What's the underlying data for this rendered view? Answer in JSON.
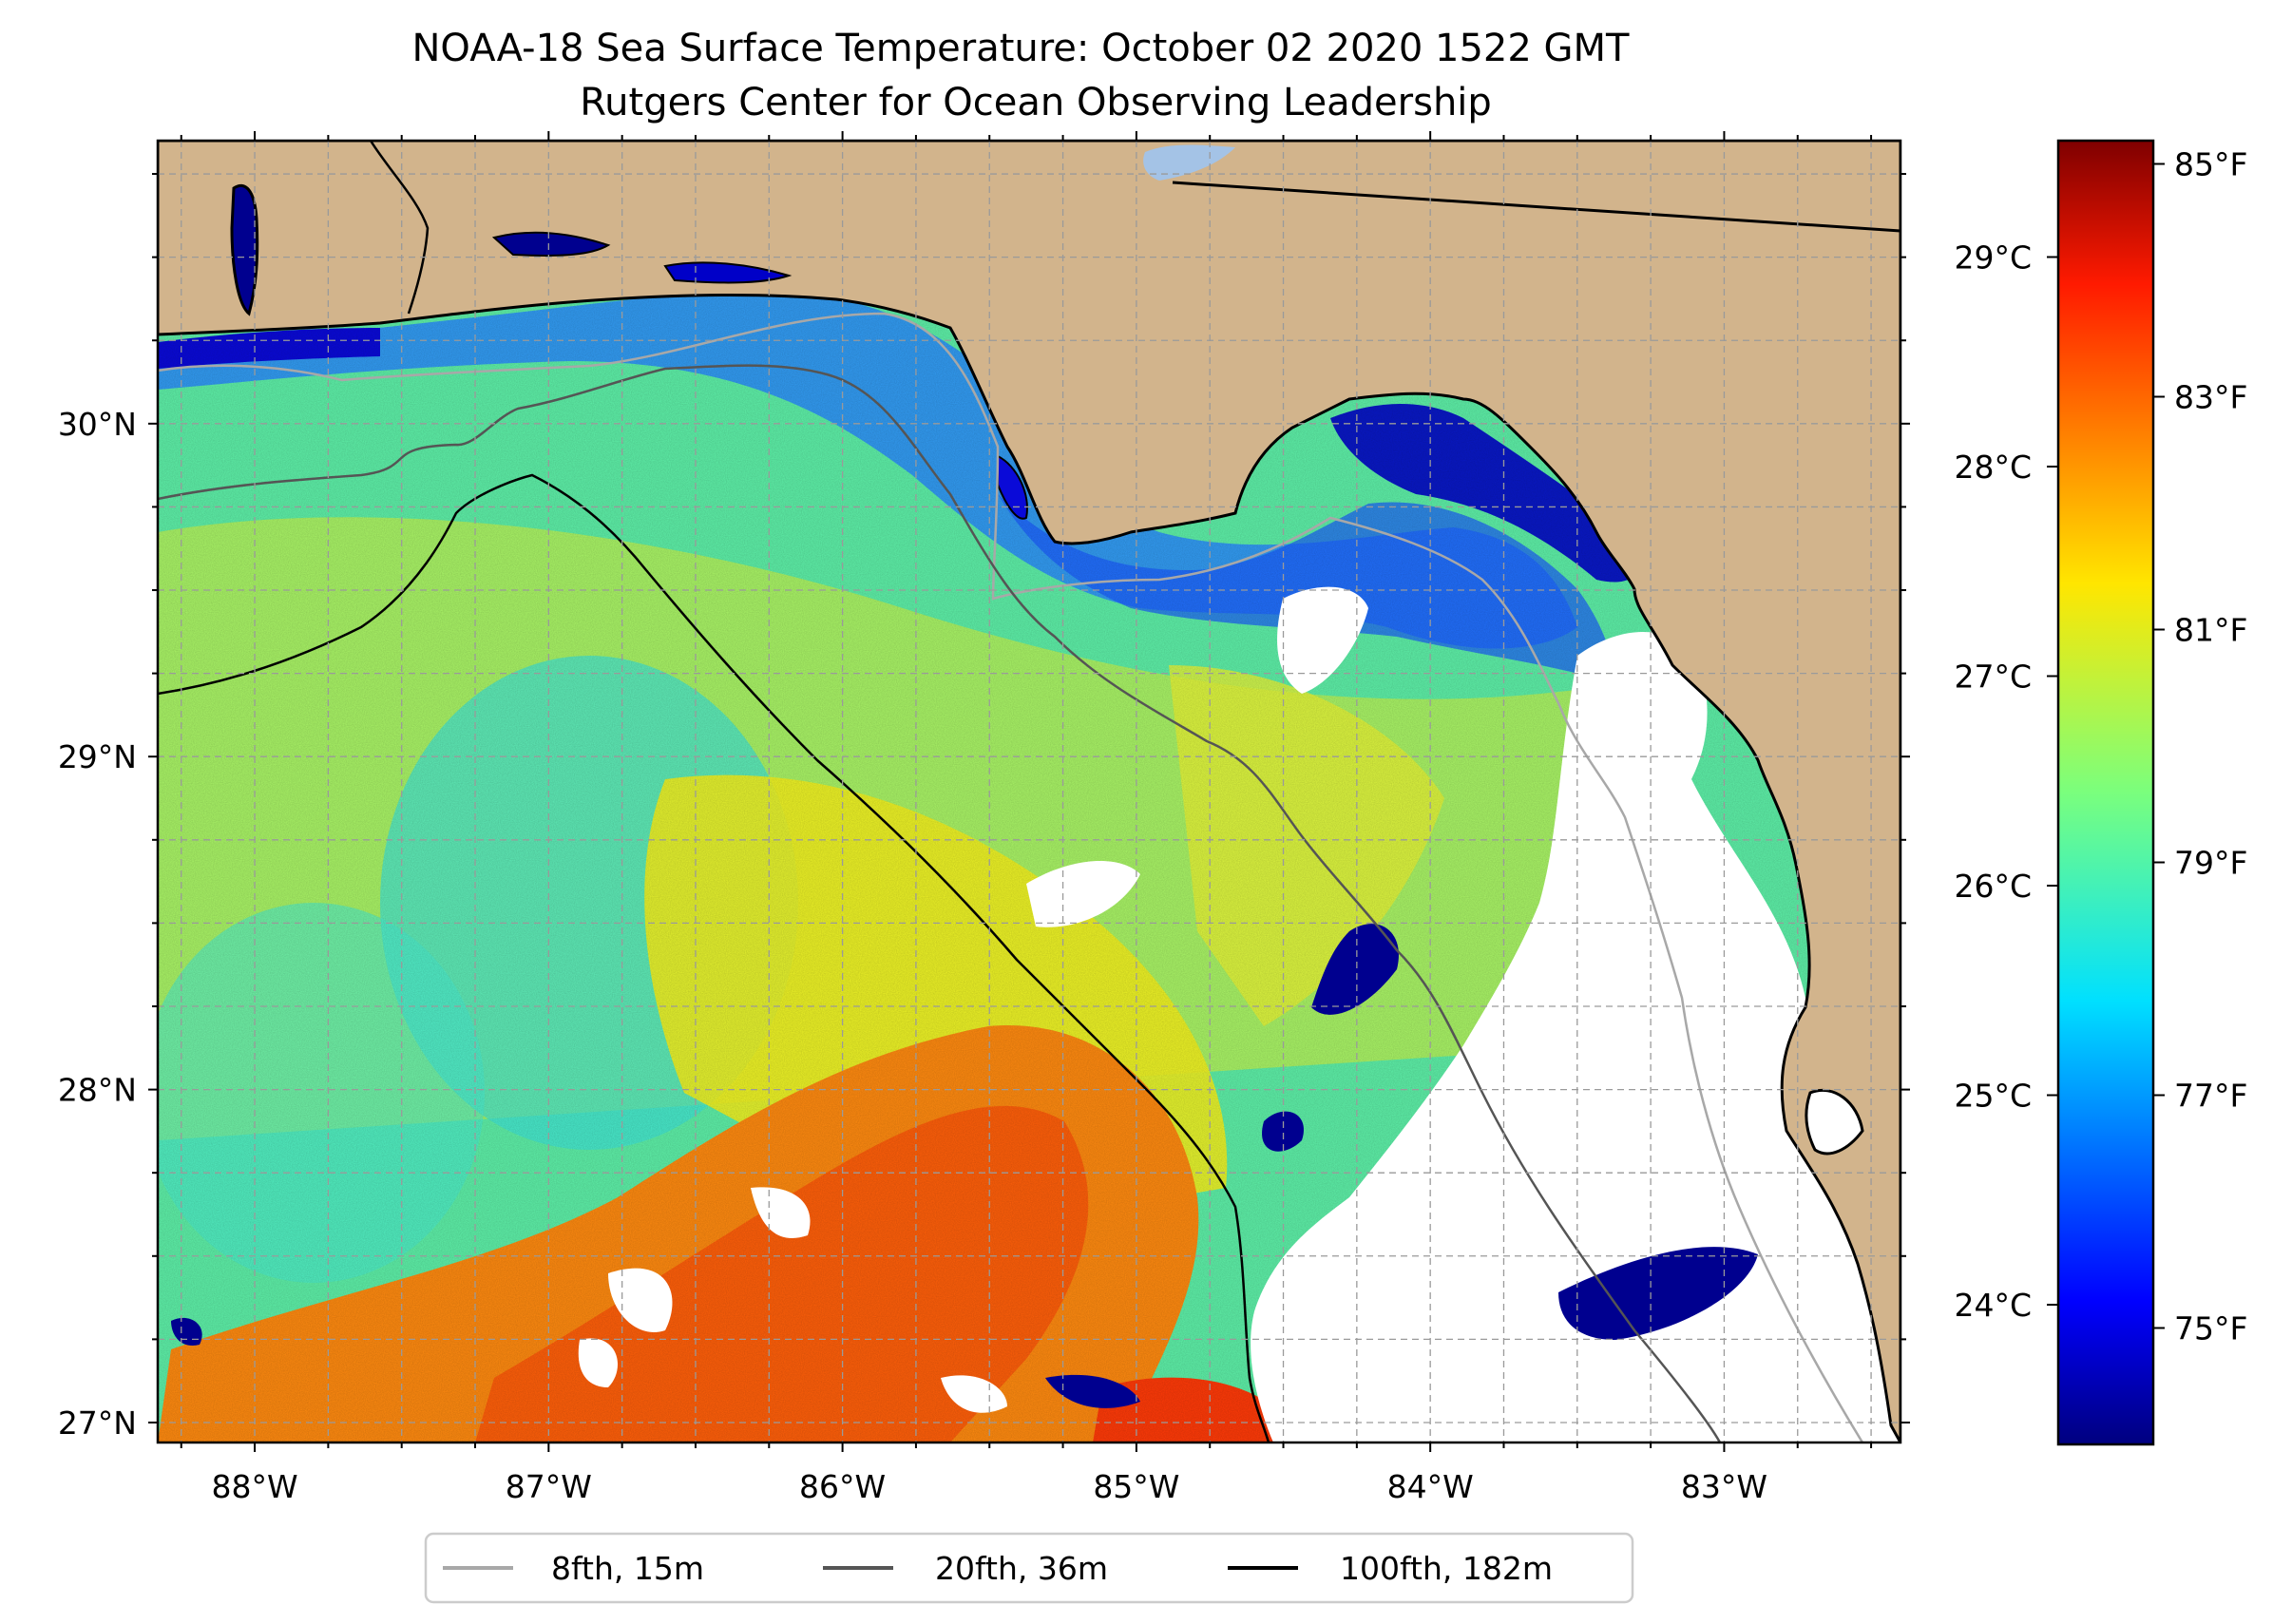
{
  "map": {
    "title": "NOAA-18 Sea Surface Temperature: October 02 2020 1522 GMT",
    "subtitle": "Rutgers Center for Ocean Observing Leadership",
    "extent": {
      "lon_min": -88.33,
      "lon_max": -82.4,
      "lat_min": 26.94,
      "lat_max": 30.85
    },
    "lon_ticks": [
      {
        "value": -88,
        "label": "88°W"
      },
      {
        "value": -87,
        "label": "87°W"
      },
      {
        "value": -86,
        "label": "86°W"
      },
      {
        "value": -85,
        "label": "85°W"
      },
      {
        "value": -84,
        "label": "84°W"
      },
      {
        "value": -83,
        "label": "83°W"
      }
    ],
    "lat_ticks": [
      {
        "value": 30,
        "label": "30°N"
      },
      {
        "value": 29,
        "label": "29°N"
      },
      {
        "value": 28,
        "label": "28°N"
      },
      {
        "value": 27,
        "label": "27°N"
      }
    ],
    "colors": {
      "land": "#d2b48c",
      "lake": "#a4c3e6",
      "grid": "#9a9a9a",
      "contour_8fth": "#a8a8a8",
      "contour_20fth": "#555555",
      "contour_100fth": "#000000"
    }
  },
  "colorbar": {
    "celsius_ticks": [
      {
        "value": 24,
        "label": "24°C"
      },
      {
        "value": 25,
        "label": "25°C"
      },
      {
        "value": 26,
        "label": "26°C"
      },
      {
        "value": 27,
        "label": "27°C"
      },
      {
        "value": 28,
        "label": "28°C"
      },
      {
        "value": 29,
        "label": "29°C"
      }
    ],
    "fahrenheit_ticks": [
      {
        "value": 75,
        "label": "75°F"
      },
      {
        "value": 77,
        "label": "77°F"
      },
      {
        "value": 79,
        "label": "79°F"
      },
      {
        "value": 81,
        "label": "81°F"
      },
      {
        "value": 83,
        "label": "83°F"
      },
      {
        "value": 85,
        "label": "85°F"
      }
    ],
    "range_f": [
      74,
      85.2
    ],
    "colormap": "jet"
  },
  "legend": {
    "items": [
      {
        "label": "8fth, 15m",
        "color": "#a8a8a8"
      },
      {
        "label": "20fth, 36m",
        "color": "#555555"
      },
      {
        "label": "100fth, 182m",
        "color": "#000000"
      }
    ]
  }
}
